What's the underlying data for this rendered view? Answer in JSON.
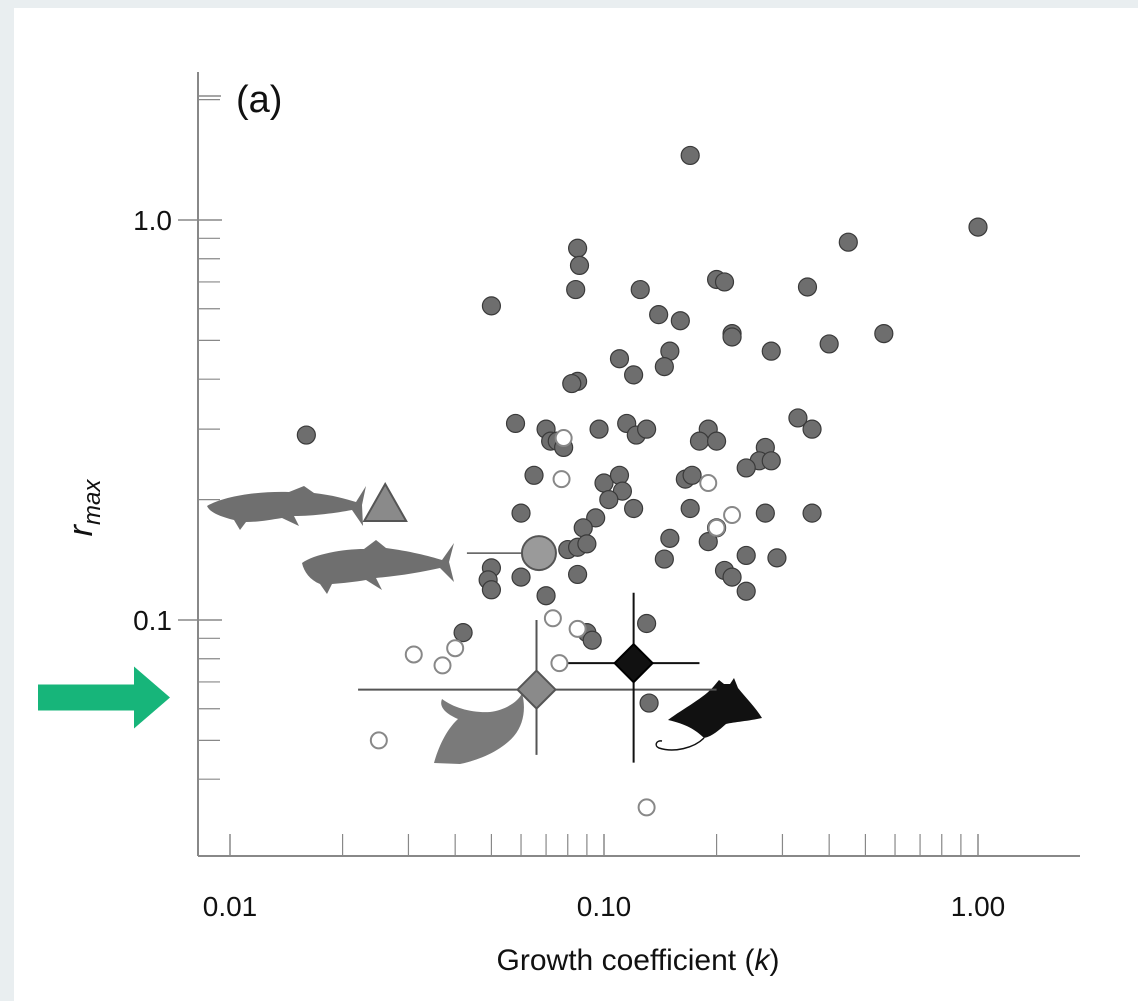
{
  "chart_data": {
    "type": "scatter",
    "panel_label": "(a)",
    "xlabel_text": "Growth coefficient (",
    "xlabel_var": "k",
    "xlabel_close": ")",
    "ylabel_main": "r",
    "ylabel_sub": "max",
    "x_scale": "log",
    "y_scale": "log",
    "xlim": [
      0.0088,
      1.8
    ],
    "ylim": [
      0.032,
      2.2
    ],
    "x_ticks": [
      0.01,
      0.1,
      1.0
    ],
    "x_tick_labels": [
      "0.01",
      "0.10",
      "1.00"
    ],
    "y_ticks": [
      0.1,
      1.0
    ],
    "y_tick_labels": [
      "0.1",
      "1.0"
    ],
    "y_minor_ticks": [
      0.04,
      0.05,
      0.06,
      0.07,
      0.08,
      0.09,
      0.2,
      0.3,
      0.4,
      0.5,
      0.6,
      0.7,
      0.8,
      0.9,
      2.0
    ],
    "x_minor_ticks": [
      0.02,
      0.03,
      0.04,
      0.05,
      0.06,
      0.07,
      0.08,
      0.09,
      0.2,
      0.3,
      0.4,
      0.5,
      0.6,
      0.7,
      0.8,
      0.9
    ],
    "colors": {
      "filled": "#6e6e6e",
      "filled_stroke": "#3a3a3a",
      "open_stroke": "#888888",
      "diamond_gray": "#8a8a8a",
      "diamond_black": "#111111",
      "silhouette_gray": "#6f6f6f",
      "silhouette_black": "#111111",
      "arrow": "#17b57a"
    },
    "series": [
      {
        "marker": "filled-circle",
        "points": [
          [
            0.17,
            1.45
          ],
          [
            0.016,
            0.29
          ],
          [
            1.0,
            0.96
          ],
          [
            0.45,
            0.88
          ],
          [
            0.085,
            0.85
          ],
          [
            0.086,
            0.77
          ],
          [
            0.2,
            0.71
          ],
          [
            0.21,
            0.7
          ],
          [
            0.35,
            0.68
          ],
          [
            0.125,
            0.67
          ],
          [
            0.084,
            0.67
          ],
          [
            0.05,
            0.61
          ],
          [
            0.14,
            0.58
          ],
          [
            0.16,
            0.56
          ],
          [
            0.22,
            0.52
          ],
          [
            0.22,
            0.51
          ],
          [
            0.56,
            0.52
          ],
          [
            0.4,
            0.49
          ],
          [
            0.15,
            0.47
          ],
          [
            0.28,
            0.47
          ],
          [
            0.11,
            0.45
          ],
          [
            0.145,
            0.43
          ],
          [
            0.12,
            0.41
          ],
          [
            0.085,
            0.395
          ],
          [
            0.082,
            0.39
          ],
          [
            0.07,
            0.3
          ],
          [
            0.058,
            0.31
          ],
          [
            0.072,
            0.28
          ],
          [
            0.075,
            0.28
          ],
          [
            0.078,
            0.27
          ],
          [
            0.097,
            0.3
          ],
          [
            0.115,
            0.31
          ],
          [
            0.122,
            0.29
          ],
          [
            0.13,
            0.3
          ],
          [
            0.19,
            0.3
          ],
          [
            0.18,
            0.28
          ],
          [
            0.2,
            0.28
          ],
          [
            0.33,
            0.32
          ],
          [
            0.36,
            0.3
          ],
          [
            0.27,
            0.27
          ],
          [
            0.26,
            0.25
          ],
          [
            0.28,
            0.25
          ],
          [
            0.24,
            0.24
          ],
          [
            0.065,
            0.23
          ],
          [
            0.1,
            0.22
          ],
          [
            0.11,
            0.23
          ],
          [
            0.112,
            0.21
          ],
          [
            0.165,
            0.225
          ],
          [
            0.172,
            0.23
          ],
          [
            0.06,
            0.185
          ],
          [
            0.095,
            0.18
          ],
          [
            0.103,
            0.2
          ],
          [
            0.12,
            0.19
          ],
          [
            0.17,
            0.19
          ],
          [
            0.2,
            0.17
          ],
          [
            0.27,
            0.185
          ],
          [
            0.36,
            0.185
          ],
          [
            0.088,
            0.17
          ],
          [
            0.08,
            0.15
          ],
          [
            0.085,
            0.152
          ],
          [
            0.09,
            0.155
          ],
          [
            0.15,
            0.16
          ],
          [
            0.145,
            0.142
          ],
          [
            0.19,
            0.157
          ],
          [
            0.24,
            0.145
          ],
          [
            0.29,
            0.143
          ],
          [
            0.05,
            0.135
          ],
          [
            0.06,
            0.128
          ],
          [
            0.049,
            0.126
          ],
          [
            0.05,
            0.119
          ],
          [
            0.085,
            0.13
          ],
          [
            0.21,
            0.133
          ],
          [
            0.22,
            0.128
          ],
          [
            0.24,
            0.118
          ],
          [
            0.07,
            0.115
          ],
          [
            0.042,
            0.093
          ],
          [
            0.09,
            0.093
          ],
          [
            0.093,
            0.089
          ],
          [
            0.13,
            0.098
          ],
          [
            0.132,
            0.062
          ]
        ]
      },
      {
        "marker": "open-circle",
        "points": [
          [
            0.078,
            0.285
          ],
          [
            0.077,
            0.225
          ],
          [
            0.19,
            0.22
          ],
          [
            0.22,
            0.183
          ],
          [
            0.2,
            0.17
          ],
          [
            0.073,
            0.101
          ],
          [
            0.085,
            0.095
          ],
          [
            0.031,
            0.082
          ],
          [
            0.04,
            0.085
          ],
          [
            0.037,
            0.077
          ],
          [
            0.076,
            0.078
          ],
          [
            0.025,
            0.05
          ],
          [
            0.13,
            0.034
          ]
        ]
      },
      {
        "marker": "gray-triangle",
        "points": [
          [
            0.026,
            0.195
          ]
        ]
      },
      {
        "marker": "gray-circle-large",
        "points": [
          [
            0.067,
            0.147
          ]
        ]
      },
      {
        "marker": "gray-diamond",
        "points": [
          [
            0.066,
            0.067
          ]
        ],
        "xerr": [
          0.022,
          0.2
        ],
        "yerr": [
          0.046,
          0.1
        ]
      },
      {
        "marker": "black-diamond",
        "points": [
          [
            0.12,
            0.078
          ]
        ],
        "xerr": [
          0.077,
          0.18
        ],
        "yerr": [
          0.044,
          0.117
        ]
      }
    ],
    "annotations": {
      "whale_shark_connector": {
        "from": [
          0.043,
          0.147
        ],
        "to": [
          0.067,
          0.147
        ]
      },
      "highlight_arrow_y": 0.064
    }
  }
}
